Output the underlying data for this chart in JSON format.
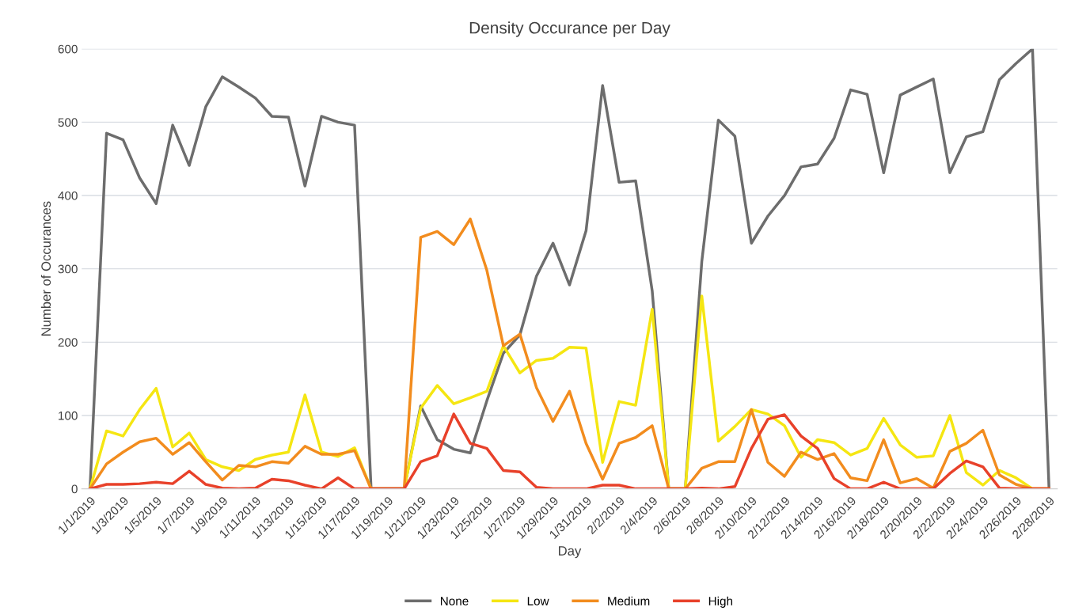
{
  "chart_data": {
    "type": "line",
    "title": "Density Occurance per Day",
    "xlabel": "Day",
    "ylabel": "Number of Occurances",
    "categories": [
      "1/1/2019",
      null,
      "1/3/2019",
      null,
      "1/5/2019",
      null,
      "1/7/2019",
      null,
      "1/9/2019",
      null,
      "1/11/2019",
      null,
      "1/13/2019",
      null,
      "1/15/2019",
      null,
      "1/17/2019",
      null,
      "1/19/2019",
      null,
      "1/21/2019",
      null,
      "1/23/2019",
      null,
      "1/25/2019",
      null,
      "1/27/2019",
      null,
      "1/29/2019",
      null,
      "1/31/2019",
      null,
      "2/2/2019",
      null,
      "2/4/2019",
      null,
      "2/6/2019",
      null,
      "2/8/2019",
      null,
      "2/10/2019",
      null,
      "2/12/2019",
      null,
      "2/14/2019",
      null,
      "2/16/2019",
      null,
      "2/18/2019",
      null,
      "2/20/2019",
      null,
      "2/22/2019",
      null,
      "2/24/2019",
      null,
      "2/26/2019",
      null,
      "2/28/2019"
    ],
    "series": [
      {
        "name": "None",
        "color": "#6d6d6d",
        "values": [
          0,
          485,
          476,
          424,
          389,
          496,
          441,
          521,
          562,
          548,
          533,
          508,
          507,
          413,
          508,
          500,
          496,
          0,
          0,
          0,
          113,
          67,
          54,
          49,
          120,
          185,
          210,
          290,
          335,
          278,
          352,
          550,
          418,
          420,
          270,
          0,
          0,
          310,
          503,
          481,
          335,
          372,
          400,
          439,
          443,
          478,
          544,
          538,
          431,
          537,
          548,
          559,
          431,
          480,
          487,
          558,
          580,
          600,
          0
        ]
      },
      {
        "name": "Low",
        "color": "#f5e612",
        "values": [
          0,
          79,
          72,
          108,
          137,
          57,
          76,
          40,
          30,
          25,
          40,
          46,
          50,
          128,
          50,
          44,
          56,
          0,
          0,
          0,
          110,
          141,
          116,
          124,
          133,
          195,
          158,
          175,
          178,
          193,
          192,
          36,
          119,
          114,
          245,
          0,
          0,
          263,
          65,
          85,
          108,
          102,
          86,
          43,
          67,
          63,
          46,
          55,
          96,
          60,
          43,
          45,
          100,
          22,
          5,
          25,
          15,
          0,
          0
        ]
      },
      {
        "name": "Medium",
        "color": "#f28c1e",
        "values": [
          0,
          34,
          50,
          64,
          69,
          47,
          63,
          37,
          12,
          32,
          30,
          37,
          35,
          58,
          47,
          47,
          52,
          0,
          0,
          0,
          343,
          351,
          333,
          368,
          298,
          195,
          211,
          138,
          92,
          133,
          62,
          13,
          62,
          70,
          86,
          0,
          0,
          28,
          37,
          37,
          108,
          36,
          17,
          50,
          40,
          48,
          15,
          11,
          67,
          8,
          14,
          1,
          51,
          62,
          80,
          19,
          6,
          0,
          0
        ]
      },
      {
        "name": "High",
        "color": "#e8412a",
        "values": [
          0,
          6,
          6,
          7,
          9,
          7,
          24,
          6,
          1,
          0,
          1,
          13,
          11,
          5,
          0,
          15,
          0,
          0,
          0,
          0,
          37,
          45,
          102,
          62,
          55,
          25,
          23,
          2,
          0,
          0,
          0,
          5,
          5,
          0,
          0,
          0,
          0,
          1,
          0,
          3,
          55,
          95,
          101,
          72,
          55,
          14,
          0,
          0,
          9,
          0,
          0,
          0,
          21,
          38,
          30,
          1,
          0,
          0,
          0
        ]
      }
    ],
    "ylim": [
      0,
      600
    ],
    "yticks": [
      0,
      100,
      200,
      300,
      400,
      500,
      600
    ],
    "grid": "y",
    "legend": "bottom",
    "marker": "none",
    "line_style": "solid"
  }
}
